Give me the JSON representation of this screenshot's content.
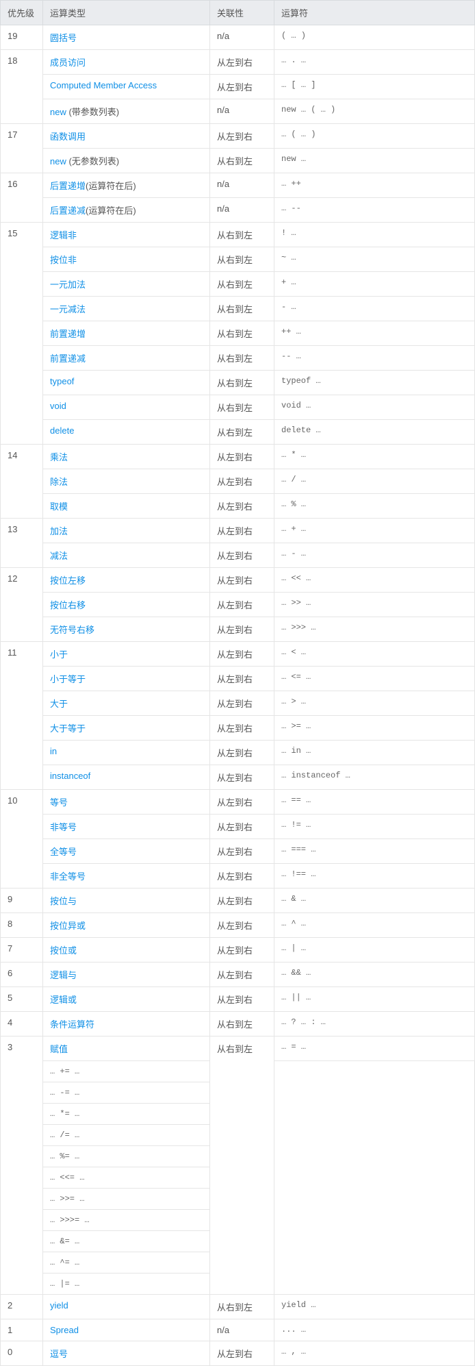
{
  "headers": [
    "优先级",
    "运算类型",
    "关联性",
    "运算符"
  ],
  "rows": [
    {
      "priority": "19",
      "pspan": 1,
      "type": "圆括号",
      "link": true,
      "suffix": "",
      "assoc": "n/a",
      "aspan": 1,
      "ops": [
        "( … )"
      ]
    },
    {
      "priority": "18",
      "pspan": 3,
      "type": "成员访问",
      "link": true,
      "suffix": "",
      "assoc": "从左到右",
      "aspan": 1,
      "ops": [
        "… . …"
      ]
    },
    {
      "priority": "",
      "pspan": 0,
      "type": "Computed Member Access",
      "link": true,
      "suffix": "",
      "assoc": "从左到右",
      "aspan": 1,
      "ops": [
        "… [ … ]"
      ]
    },
    {
      "priority": "",
      "pspan": 0,
      "type": "new",
      "link": true,
      "suffix": " (带参数列表)",
      "assoc": "n/a",
      "aspan": 1,
      "ops": [
        "new … ( … )"
      ]
    },
    {
      "priority": "17",
      "pspan": 2,
      "type": "函数调用",
      "link": true,
      "suffix": "",
      "assoc": "从左到右",
      "aspan": 1,
      "ops": [
        "… ( … )"
      ]
    },
    {
      "priority": "",
      "pspan": 0,
      "type": "new",
      "link": true,
      "suffix": " (无参数列表)",
      "assoc": "从右到左",
      "aspan": 1,
      "ops": [
        "new …"
      ]
    },
    {
      "priority": "16",
      "pspan": 2,
      "type": "后置递增",
      "link": true,
      "suffix": "(运算符在后)",
      "assoc": "n/a",
      "aspan": 1,
      "ops": [
        "… ++"
      ]
    },
    {
      "priority": "",
      "pspan": 0,
      "type": "后置递减",
      "link": true,
      "suffix": "(运算符在后)",
      "assoc": "n/a",
      "aspan": 1,
      "ops": [
        "… --"
      ]
    },
    {
      "priority": "15",
      "pspan": 9,
      "type": "逻辑非",
      "link": true,
      "suffix": "",
      "assoc": "从右到左",
      "aspan": 1,
      "ops": [
        "! …"
      ]
    },
    {
      "priority": "",
      "pspan": 0,
      "type": "按位非",
      "link": true,
      "suffix": "",
      "assoc": "从右到左",
      "aspan": 1,
      "ops": [
        "~ …"
      ]
    },
    {
      "priority": "",
      "pspan": 0,
      "type": "一元加法",
      "link": true,
      "suffix": "",
      "assoc": "从右到左",
      "aspan": 1,
      "ops": [
        "+ …"
      ]
    },
    {
      "priority": "",
      "pspan": 0,
      "type": "一元减法",
      "link": true,
      "suffix": "",
      "assoc": "从右到左",
      "aspan": 1,
      "ops": [
        "- …"
      ]
    },
    {
      "priority": "",
      "pspan": 0,
      "type": "前置递增",
      "link": true,
      "suffix": "",
      "assoc": "从右到左",
      "aspan": 1,
      "ops": [
        "++ …"
      ]
    },
    {
      "priority": "",
      "pspan": 0,
      "type": "前置递减",
      "link": true,
      "suffix": "",
      "assoc": "从右到左",
      "aspan": 1,
      "ops": [
        "-- …"
      ]
    },
    {
      "priority": "",
      "pspan": 0,
      "type": "typeof",
      "link": true,
      "suffix": "",
      "assoc": "从右到左",
      "aspan": 1,
      "ops": [
        "typeof …"
      ]
    },
    {
      "priority": "",
      "pspan": 0,
      "type": "void",
      "link": true,
      "suffix": "",
      "assoc": "从右到左",
      "aspan": 1,
      "ops": [
        "void …"
      ]
    },
    {
      "priority": "",
      "pspan": 0,
      "type": "delete",
      "link": true,
      "suffix": "",
      "assoc": "从右到左",
      "aspan": 1,
      "ops": [
        "delete …"
      ]
    },
    {
      "priority": "14",
      "pspan": 3,
      "type": "乘法",
      "link": true,
      "suffix": "",
      "assoc": "从左到右",
      "aspan": 1,
      "ops": [
        "… * …"
      ]
    },
    {
      "priority": "",
      "pspan": 0,
      "type": "除法",
      "link": true,
      "suffix": "",
      "assoc": "从左到右",
      "aspan": 1,
      "ops": [
        "… / …"
      ]
    },
    {
      "priority": "",
      "pspan": 0,
      "type": "取模",
      "link": true,
      "suffix": "",
      "assoc": "从左到右",
      "aspan": 1,
      "ops": [
        "… % …"
      ]
    },
    {
      "priority": "13",
      "pspan": 2,
      "type": "加法",
      "link": true,
      "suffix": "",
      "assoc": "从左到右",
      "aspan": 1,
      "ops": [
        "… + …"
      ]
    },
    {
      "priority": "",
      "pspan": 0,
      "type": "减法",
      "link": true,
      "suffix": "",
      "assoc": "从左到右",
      "aspan": 1,
      "ops": [
        "… - …"
      ]
    },
    {
      "priority": "12",
      "pspan": 3,
      "type": "按位左移",
      "link": true,
      "suffix": "",
      "assoc": "从左到右",
      "aspan": 1,
      "ops": [
        "… << …"
      ]
    },
    {
      "priority": "",
      "pspan": 0,
      "type": "按位右移",
      "link": true,
      "suffix": "",
      "assoc": "从左到右",
      "aspan": 1,
      "ops": [
        "… >> …"
      ]
    },
    {
      "priority": "",
      "pspan": 0,
      "type": "无符号右移",
      "link": true,
      "suffix": "",
      "assoc": "从左到右",
      "aspan": 1,
      "ops": [
        "… >>> …"
      ]
    },
    {
      "priority": "11",
      "pspan": 6,
      "type": "小于",
      "link": true,
      "suffix": "",
      "assoc": "从左到右",
      "aspan": 1,
      "ops": [
        "… < …"
      ]
    },
    {
      "priority": "",
      "pspan": 0,
      "type": "小于等于",
      "link": true,
      "suffix": "",
      "assoc": "从左到右",
      "aspan": 1,
      "ops": [
        "… <= …"
      ]
    },
    {
      "priority": "",
      "pspan": 0,
      "type": "大于",
      "link": true,
      "suffix": "",
      "assoc": "从左到右",
      "aspan": 1,
      "ops": [
        "… > …"
      ]
    },
    {
      "priority": "",
      "pspan": 0,
      "type": "大于等于",
      "link": true,
      "suffix": "",
      "assoc": "从左到右",
      "aspan": 1,
      "ops": [
        "… >= …"
      ]
    },
    {
      "priority": "",
      "pspan": 0,
      "type": "in",
      "link": true,
      "suffix": "",
      "assoc": "从左到右",
      "aspan": 1,
      "ops": [
        "… in …"
      ]
    },
    {
      "priority": "",
      "pspan": 0,
      "type": "instanceof",
      "link": true,
      "suffix": "",
      "assoc": "从左到右",
      "aspan": 1,
      "ops": [
        "… instanceof …"
      ]
    },
    {
      "priority": "10",
      "pspan": 4,
      "type": "等号",
      "link": true,
      "suffix": "",
      "assoc": "从左到右",
      "aspan": 1,
      "ops": [
        "… == …"
      ]
    },
    {
      "priority": "",
      "pspan": 0,
      "type": "非等号",
      "link": true,
      "suffix": "",
      "assoc": "从左到右",
      "aspan": 1,
      "ops": [
        "… != …"
      ]
    },
    {
      "priority": "",
      "pspan": 0,
      "type": "全等号",
      "link": true,
      "suffix": "",
      "assoc": "从左到右",
      "aspan": 1,
      "ops": [
        "… === …"
      ]
    },
    {
      "priority": "",
      "pspan": 0,
      "type": "非全等号",
      "link": true,
      "suffix": "",
      "assoc": "从左到右",
      "aspan": 1,
      "ops": [
        "… !== …"
      ]
    },
    {
      "priority": "9",
      "pspan": 1,
      "type": "按位与",
      "link": true,
      "suffix": "",
      "assoc": "从左到右",
      "aspan": 1,
      "ops": [
        "… & …"
      ]
    },
    {
      "priority": "8",
      "pspan": 1,
      "type": "按位异或",
      "link": true,
      "suffix": "",
      "assoc": "从左到右",
      "aspan": 1,
      "ops": [
        "… ^ …"
      ]
    },
    {
      "priority": "7",
      "pspan": 1,
      "type": "按位或",
      "link": true,
      "suffix": "",
      "assoc": "从左到右",
      "aspan": 1,
      "ops": [
        "… | …"
      ]
    },
    {
      "priority": "6",
      "pspan": 1,
      "type": "逻辑与",
      "link": true,
      "suffix": "",
      "assoc": "从左到右",
      "aspan": 1,
      "ops": [
        "… && …"
      ]
    },
    {
      "priority": "5",
      "pspan": 1,
      "type": "逻辑或",
      "link": true,
      "suffix": "",
      "assoc": "从左到右",
      "aspan": 1,
      "ops": [
        "… || …"
      ]
    },
    {
      "priority": "4",
      "pspan": 1,
      "type": "条件运算符",
      "link": true,
      "suffix": "",
      "assoc": "从右到左",
      "aspan": 1,
      "ops": [
        "… ? … : …"
      ]
    },
    {
      "priority": "3",
      "pspan": 12,
      "type": "赋值",
      "link": true,
      "suffix": "",
      "assoc": "从右到左",
      "aspan": 12,
      "ops": [
        "… = …"
      ]
    },
    {
      "priority": "",
      "pspan": 0,
      "type": "",
      "link": false,
      "suffix": "",
      "assoc": "",
      "aspan": 0,
      "ops": [
        "… += …"
      ]
    },
    {
      "priority": "",
      "pspan": 0,
      "type": "",
      "link": false,
      "suffix": "",
      "assoc": "",
      "aspan": 0,
      "ops": [
        "… -= …"
      ]
    },
    {
      "priority": "",
      "pspan": 0,
      "type": "",
      "link": false,
      "suffix": "",
      "assoc": "",
      "aspan": 0,
      "ops": [
        "… *= …"
      ]
    },
    {
      "priority": "",
      "pspan": 0,
      "type": "",
      "link": false,
      "suffix": "",
      "assoc": "",
      "aspan": 0,
      "ops": [
        "… /= …"
      ]
    },
    {
      "priority": "",
      "pspan": 0,
      "type": "",
      "link": false,
      "suffix": "",
      "assoc": "",
      "aspan": 0,
      "ops": [
        "… %= …"
      ]
    },
    {
      "priority": "",
      "pspan": 0,
      "type": "",
      "link": false,
      "suffix": "",
      "assoc": "",
      "aspan": 0,
      "ops": [
        "… <<= …"
      ]
    },
    {
      "priority": "",
      "pspan": 0,
      "type": "",
      "link": false,
      "suffix": "",
      "assoc": "",
      "aspan": 0,
      "ops": [
        "… >>= …"
      ]
    },
    {
      "priority": "",
      "pspan": 0,
      "type": "",
      "link": false,
      "suffix": "",
      "assoc": "",
      "aspan": 0,
      "ops": [
        "… >>>= …"
      ]
    },
    {
      "priority": "",
      "pspan": 0,
      "type": "",
      "link": false,
      "suffix": "",
      "assoc": "",
      "aspan": 0,
      "ops": [
        "… &= …"
      ]
    },
    {
      "priority": "",
      "pspan": 0,
      "type": "",
      "link": false,
      "suffix": "",
      "assoc": "",
      "aspan": 0,
      "ops": [
        "… ^= …"
      ]
    },
    {
      "priority": "",
      "pspan": 0,
      "type": "",
      "link": false,
      "suffix": "",
      "assoc": "",
      "aspan": 0,
      "ops": [
        "… |= …"
      ]
    },
    {
      "priority": "2",
      "pspan": 1,
      "type": "yield",
      "link": true,
      "suffix": "",
      "assoc": "从右到左",
      "aspan": 1,
      "ops": [
        "yield …"
      ]
    },
    {
      "priority": "1",
      "pspan": 1,
      "type": "Spread",
      "link": true,
      "suffix": "",
      "assoc": "n/a",
      "aspan": 1,
      "ops": [
        "... …"
      ]
    },
    {
      "priority": "0",
      "pspan": 1,
      "type": "逗号",
      "link": true,
      "suffix": "",
      "assoc": "从左到右",
      "aspan": 1,
      "ops": [
        "… , …"
      ]
    }
  ]
}
